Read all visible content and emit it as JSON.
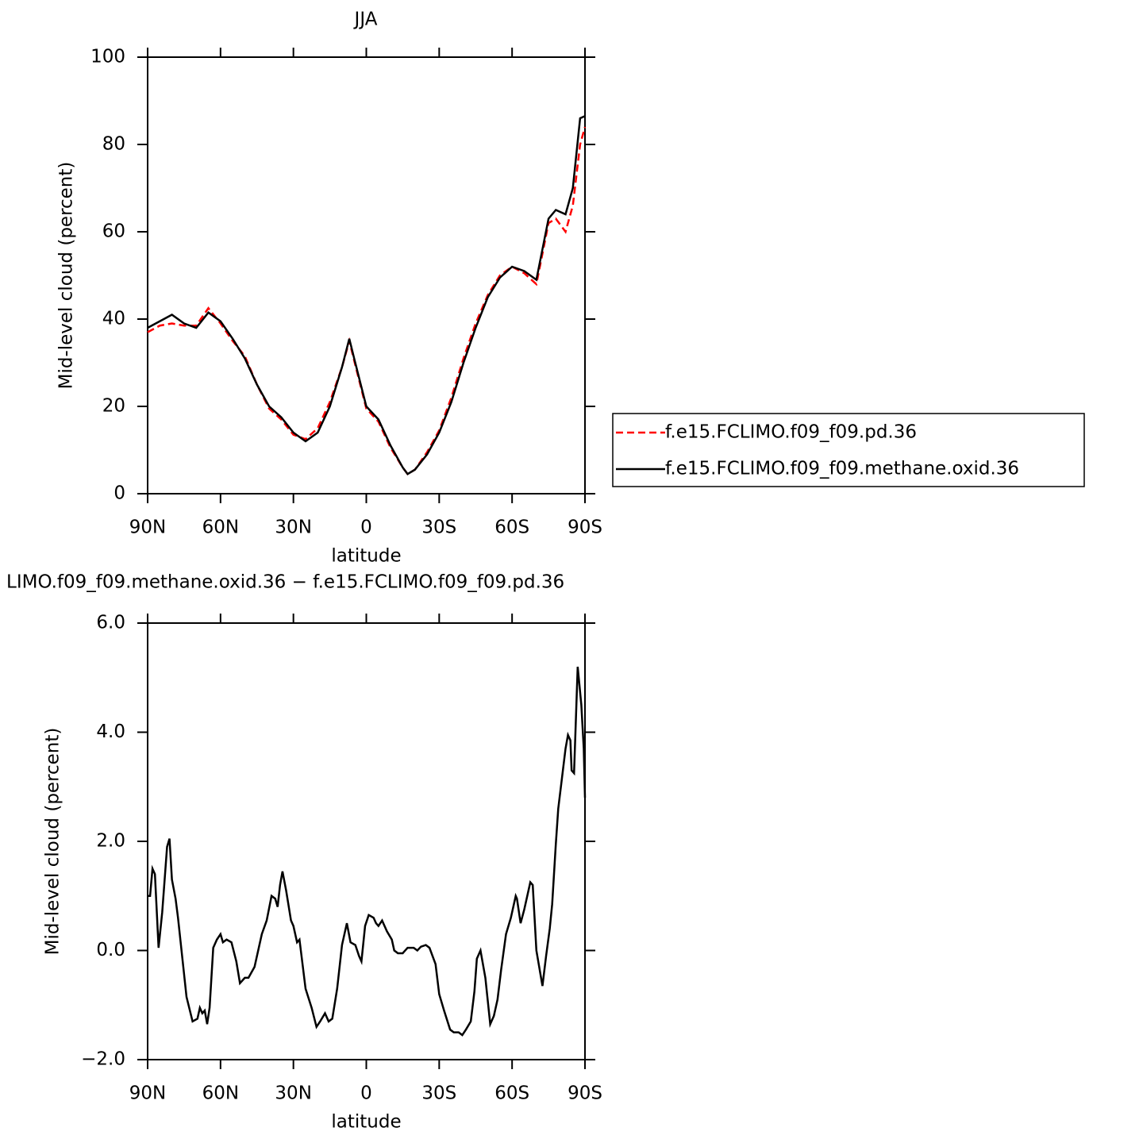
{
  "chart_data": [
    {
      "type": "line",
      "title": "JJA",
      "xlabel": "latitude",
      "ylabel": "Mid-level cloud (percent)",
      "x": [
        90,
        85,
        80,
        75,
        70,
        65,
        60,
        55,
        50,
        45,
        40,
        35,
        30,
        25,
        20,
        15,
        10,
        7,
        5,
        0,
        -5,
        -10,
        -15,
        -17,
        -20,
        -25,
        -30,
        -35,
        -40,
        -45,
        -50,
        -55,
        -60,
        -65,
        -70,
        -75,
        -78,
        -82,
        -85,
        -88,
        -90
      ],
      "series": [
        {
          "name": "f.e15.FCLIMO.f09_f09.pd.36",
          "color": "#ff0000",
          "line_style": "dashed",
          "values": [
            37,
            38.5,
            39,
            38.5,
            38.5,
            42.5,
            39,
            35,
            31.5,
            25,
            19.5,
            17,
            13.5,
            12.5,
            15,
            21,
            29,
            35,
            30.5,
            19.5,
            16.5,
            10.5,
            6,
            4.5,
            5.5,
            9.5,
            14.5,
            22,
            31,
            39,
            45.5,
            50,
            52,
            50.5,
            48,
            62,
            63,
            60,
            66,
            80,
            84
          ]
        },
        {
          "name": "f.e15.FCLIMO.f09_f09.methane.oxid.36",
          "color": "#000000",
          "line_style": "solid",
          "values": [
            38,
            39.5,
            41,
            39,
            38,
            41.5,
            39.5,
            35.5,
            31,
            25,
            20,
            17.5,
            14,
            12,
            14,
            20,
            29,
            35.5,
            31,
            20,
            17,
            11,
            6,
            4.5,
            5.5,
            9,
            14,
            21,
            30,
            38,
            45,
            49.5,
            52,
            51,
            49,
            63,
            65,
            64,
            70,
            86,
            86.5
          ]
        }
      ],
      "xlim": [
        90,
        -90
      ],
      "xticks": [
        {
          "value": 90,
          "label": "90N"
        },
        {
          "value": 60,
          "label": "60N"
        },
        {
          "value": 30,
          "label": "30N"
        },
        0,
        {
          "value": -30,
          "label": "30S"
        },
        {
          "value": -60,
          "label": "60S"
        },
        {
          "value": -90,
          "label": "90S"
        }
      ],
      "ylim": [
        0,
        100
      ],
      "yticks": [
        0,
        20,
        40,
        60,
        80,
        100
      ],
      "legend": "outside-right"
    },
    {
      "type": "line",
      "title": "LIMO.f09_f09.methane.oxid.36 − f.e15.FCLIMO.f09_f09.pd.36",
      "xlabel": "latitude",
      "ylabel": "Mid-level cloud (percent)",
      "x": [
        90,
        89,
        88,
        87,
        85.5,
        84,
        82,
        81,
        80,
        78.5,
        77.5,
        74,
        71.5,
        69.5,
        68.5,
        67.5,
        66.5,
        65.5,
        64.5,
        63,
        61.5,
        60,
        59,
        57.5,
        55.5,
        53.5,
        52,
        50,
        48.5,
        46,
        43,
        41,
        39,
        37.5,
        36.5,
        35.5,
        34.5,
        33,
        31,
        30,
        28.5,
        27.5,
        25,
        22.5,
        20.5,
        19,
        17,
        15.5,
        14,
        12,
        10,
        8,
        6.5,
        4.5,
        3,
        2,
        0.5,
        -1,
        -3,
        -4,
        -5,
        -6.5,
        -8.5,
        -10.5,
        -11.5,
        -13,
        -15,
        -17,
        -19.5,
        -21,
        -22.5,
        -24.5,
        -26,
        -28.5,
        -30,
        -32,
        -34.5,
        -36,
        -38,
        -39.5,
        -41,
        -43,
        -44.5,
        -45.5,
        -47,
        -49,
        -51,
        -52.5,
        -54,
        -55.5,
        -57.5,
        -59.5,
        -61.5,
        -62,
        -63.5,
        -65,
        -66,
        -67.5,
        -68.5,
        -70,
        -72.5,
        -74,
        -75.5,
        -76.5,
        -78,
        -79,
        -80.5,
        -82,
        -83,
        -84,
        -84.5,
        -85.5,
        -87,
        -88.5,
        -89.5,
        -90
      ],
      "values": [
        1.0,
        1.0,
        1.5,
        1.4,
        0.05,
        0.7,
        1.9,
        2.05,
        1.3,
        0.95,
        0.6,
        -0.85,
        -1.3,
        -1.25,
        -1.05,
        -1.15,
        -1.1,
        -1.35,
        -1.05,
        0.05,
        0.2,
        0.3,
        0.15,
        0.2,
        0.15,
        -0.2,
        -0.6,
        -0.5,
        -0.5,
        -0.3,
        0.3,
        0.55,
        1.0,
        0.95,
        0.8,
        1.2,
        1.45,
        1.1,
        0.55,
        0.45,
        0.15,
        0.2,
        -0.7,
        -1.05,
        -1.4,
        -1.3,
        -1.15,
        -1.3,
        -1.25,
        -0.7,
        0.1,
        0.5,
        0.15,
        0.1,
        -0.1,
        -0.2,
        0.45,
        0.65,
        0.6,
        0.5,
        0.45,
        0.55,
        0.35,
        0.2,
        0.0,
        -0.05,
        -0.05,
        0.05,
        0.05,
        0.0,
        0.07,
        0.1,
        0.05,
        -0.25,
        -0.8,
        -1.1,
        -1.45,
        -1.5,
        -1.5,
        -1.55,
        -1.45,
        -1.3,
        -0.75,
        -0.15,
        0.0,
        -0.5,
        -1.35,
        -1.2,
        -0.9,
        -0.35,
        0.3,
        0.6,
        1.0,
        0.95,
        0.5,
        0.75,
        0.95,
        1.25,
        1.2,
        0.0,
        -0.65,
        -0.1,
        0.4,
        0.85,
        1.95,
        2.6,
        3.15,
        3.7,
        3.95,
        3.85,
        3.3,
        3.25,
        5.2,
        4.5,
        3.7,
        2.8
      ],
      "color": "#000000",
      "xlim": [
        90,
        -90
      ],
      "xticks": [
        {
          "value": 90,
          "label": "90N"
        },
        {
          "value": 60,
          "label": "60N"
        },
        {
          "value": 30,
          "label": "30N"
        },
        0,
        {
          "value": -30,
          "label": "30S"
        },
        {
          "value": -60,
          "label": "60S"
        },
        {
          "value": -90,
          "label": "90S"
        }
      ],
      "ylim": [
        -2,
        6
      ],
      "yticks": [
        {
          "value": -2,
          "label": "−2.0"
        },
        {
          "value": 0,
          "label": "0.0"
        },
        {
          "value": 2,
          "label": "2.0"
        },
        {
          "value": 4,
          "label": "4.0"
        },
        {
          "value": 6,
          "label": "6.0"
        }
      ]
    }
  ]
}
